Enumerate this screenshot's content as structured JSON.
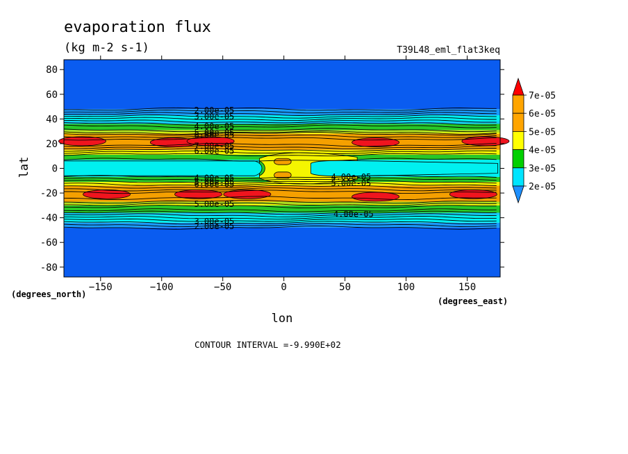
{
  "title": "evaporation flux",
  "units": "(kg m-2 s-1)",
  "run_name": "T39L48_eml_flat3keq",
  "contour_interval": "CONTOUR INTERVAL =-9.990E+02",
  "colors": {
    "band_2e": "#0a5cf0",
    "band_3e": "#1a9bff",
    "band_3e_b": "#17c8f5",
    "band_4e": "#00f0f0",
    "band_5e": "#28c828",
    "band_5e_b": "#b0e020",
    "band_6e": "#f5f500",
    "band_6e_b": "#f0c000",
    "band_7e": "#f5a000",
    "band_max": "#f0141e"
  },
  "chart_data": {
    "type": "heatmap",
    "title": "evaporation flux",
    "subtitle": "(kg m-2 s-1)",
    "xlabel": "lon",
    "ylabel": "lat",
    "x_unit_label": "(degrees_east)",
    "y_unit_label": "(degrees_north)",
    "xlim": [
      -180,
      177
    ],
    "ylim": [
      -88,
      88
    ],
    "xticks": [
      -150,
      -100,
      -50,
      0,
      50,
      100,
      150
    ],
    "yticks": [
      80,
      60,
      40,
      20,
      0,
      -20,
      -40,
      -60,
      -80
    ],
    "colorbar": {
      "labels": [
        "2e-05",
        "3e-05",
        "4e-05",
        "5e-05",
        "6e-05",
        "7e-05"
      ],
      "levels": [
        2e-05,
        3e-05,
        4e-05,
        5e-05,
        6e-05,
        7e-05
      ],
      "colors": [
        "#1e90ff",
        "#00e5ff",
        "#00d000",
        "#ffff00",
        "#ffa500",
        "#ff0000"
      ],
      "extend": "both"
    },
    "bands_by_latitude": [
      {
        "lat_min": -88,
        "lat_max": -48,
        "value": 2e-05
      },
      {
        "lat_min": -48,
        "lat_max": -44,
        "value": 3e-05
      },
      {
        "lat_min": -44,
        "lat_max": -36,
        "value": 3.5e-05
      },
      {
        "lat_min": -36,
        "lat_max": -30,
        "value": 4e-05
      },
      {
        "lat_min": -30,
        "lat_max": -27,
        "value": 5e-05
      },
      {
        "lat_min": -27,
        "lat_max": -14,
        "value": 6e-05
      },
      {
        "lat_min": -14,
        "lat_max": -11,
        "value": 5e-05
      },
      {
        "lat_min": -11,
        "lat_max": -7,
        "value": 4e-05
      },
      {
        "lat_min": -7,
        "lat_max": 7,
        "value": 3.5e-05
      },
      {
        "lat_min": 7,
        "lat_max": 11,
        "value": 4e-05
      },
      {
        "lat_min": 11,
        "lat_max": 15,
        "value": 5e-05
      },
      {
        "lat_min": 15,
        "lat_max": 28,
        "value": 6e-05
      },
      {
        "lat_min": 28,
        "lat_max": 31,
        "value": 5e-05
      },
      {
        "lat_min": 31,
        "lat_max": 36,
        "value": 4e-05
      },
      {
        "lat_min": 36,
        "lat_max": 43,
        "value": 3.5e-05
      },
      {
        "lat_min": 43,
        "lat_max": 48,
        "value": 3e-05
      },
      {
        "lat_min": 48,
        "lat_max": 88,
        "value": 2e-05
      }
    ],
    "maxima": [
      {
        "lon": -165,
        "lat": 22
      },
      {
        "lon": -90,
        "lat": 21
      },
      {
        "lon": -60,
        "lat": 22
      },
      {
        "lon": 75,
        "lat": 21
      },
      {
        "lon": 165,
        "lat": 22
      },
      {
        "lon": -145,
        "lat": -21
      },
      {
        "lon": -70,
        "lat": -21
      },
      {
        "lon": -30,
        "lat": -21
      },
      {
        "lon": 75,
        "lat": -23
      },
      {
        "lon": 155,
        "lat": -21
      }
    ],
    "contour_labels": [
      {
        "text": "2.00e-05",
        "lon": -57,
        "lat": 47
      },
      {
        "text": "3.00e-05",
        "lon": -57,
        "lat": 42
      },
      {
        "text": "4.00e-05",
        "lon": -57,
        "lat": 34
      },
      {
        "text": "5.00e-05",
        "lon": -57,
        "lat": 29
      },
      {
        "text": "6.00e-05",
        "lon": -57,
        "lat": 27
      },
      {
        "text": "7.00e-05",
        "lon": -57,
        "lat": 18
      },
      {
        "text": "6.00e-05",
        "lon": -57,
        "lat": 14
      },
      {
        "text": "4.00e-05",
        "lon": -57,
        "lat": -8
      },
      {
        "text": "5.00e-05",
        "lon": -57,
        "lat": -11
      },
      {
        "text": "6.00e-05",
        "lon": -57,
        "lat": -13
      },
      {
        "text": "5.00e-05",
        "lon": -57,
        "lat": -29
      },
      {
        "text": "3.00e-05",
        "lon": -57,
        "lat": -43
      },
      {
        "text": "2.00e-05",
        "lon": -57,
        "lat": -47
      },
      {
        "text": "4.00e-05",
        "lon": 55,
        "lat": -7
      },
      {
        "text": "5.00e-05",
        "lon": 55,
        "lat": -12
      },
      {
        "text": "4.00e-05",
        "lon": 57,
        "lat": -37
      }
    ]
  }
}
